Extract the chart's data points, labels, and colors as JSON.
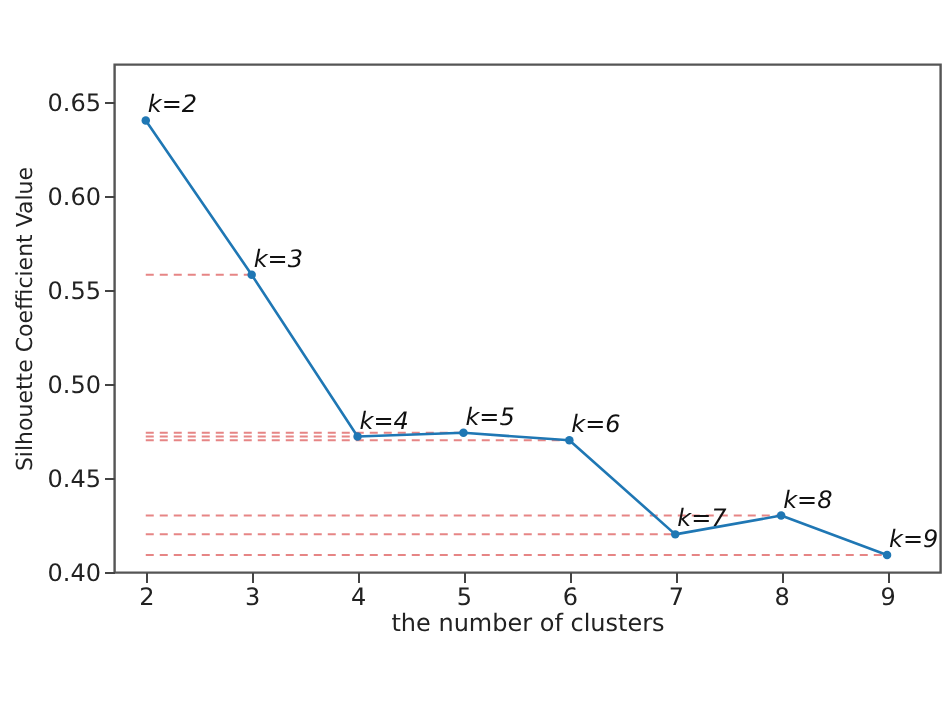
{
  "chart_data": {
    "type": "line",
    "xlabel": "the number of clusters",
    "ylabel": "Silhouette Coefficient Value",
    "x": [
      2,
      3,
      4,
      5,
      6,
      7,
      8,
      9
    ],
    "series": [
      {
        "color": "#1f77b4",
        "values": [
          0.64,
          0.558,
          0.472,
          0.474,
          0.47,
          0.42,
          0.43,
          0.409
        ]
      }
    ],
    "xlim": [
      1.7,
      9.5
    ],
    "xticks": [
      2,
      3,
      4,
      5,
      6,
      7,
      8,
      9
    ],
    "ylim": [
      0.4,
      0.67
    ],
    "yticks": [
      {
        "value": 0.4,
        "label": "0.40"
      },
      0.45,
      {
        "value": 0.5,
        "label": "0.50"
      },
      0.55,
      {
        "value": 0.6,
        "label": "0.60"
      },
      0.65
    ],
    "marker": "circle",
    "line_style": "solid",
    "grid": false,
    "ref_lines": [
      {
        "axis": "y",
        "value": 0.558,
        "color": "#e06666",
        "line_style": "dashed"
      },
      {
        "axis": "y",
        "value": 0.474,
        "color": "#e06666",
        "line_style": "dashed"
      },
      {
        "axis": "y",
        "value": 0.472,
        "color": "#e06666",
        "line_style": "dashed"
      },
      {
        "axis": "y",
        "value": 0.47,
        "color": "#e06666",
        "line_style": "dashed"
      },
      {
        "axis": "y",
        "value": 0.43,
        "color": "#e06666",
        "line_style": "dashed"
      },
      {
        "axis": "y",
        "value": 0.42,
        "color": "#e06666",
        "line_style": "dashed"
      },
      {
        "axis": "y",
        "value": 0.409,
        "color": "#e06666",
        "line_style": "dashed"
      }
    ],
    "annotations": [
      {
        "text": "k=2",
        "x": 2,
        "y": 0.64
      },
      {
        "text": "k=3",
        "x": 3,
        "y": 0.558
      },
      {
        "text": "k=4",
        "x": 4,
        "y": 0.472
      },
      {
        "text": "k=5",
        "x": 5,
        "y": 0.474
      },
      {
        "text": "k=6",
        "x": 6,
        "y": 0.47
      },
      {
        "text": "k=7",
        "x": 7,
        "y": 0.42
      },
      {
        "text": "k=8",
        "x": 8,
        "y": 0.43
      },
      {
        "text": "k=9",
        "x": 9,
        "y": 0.409
      }
    ]
  }
}
